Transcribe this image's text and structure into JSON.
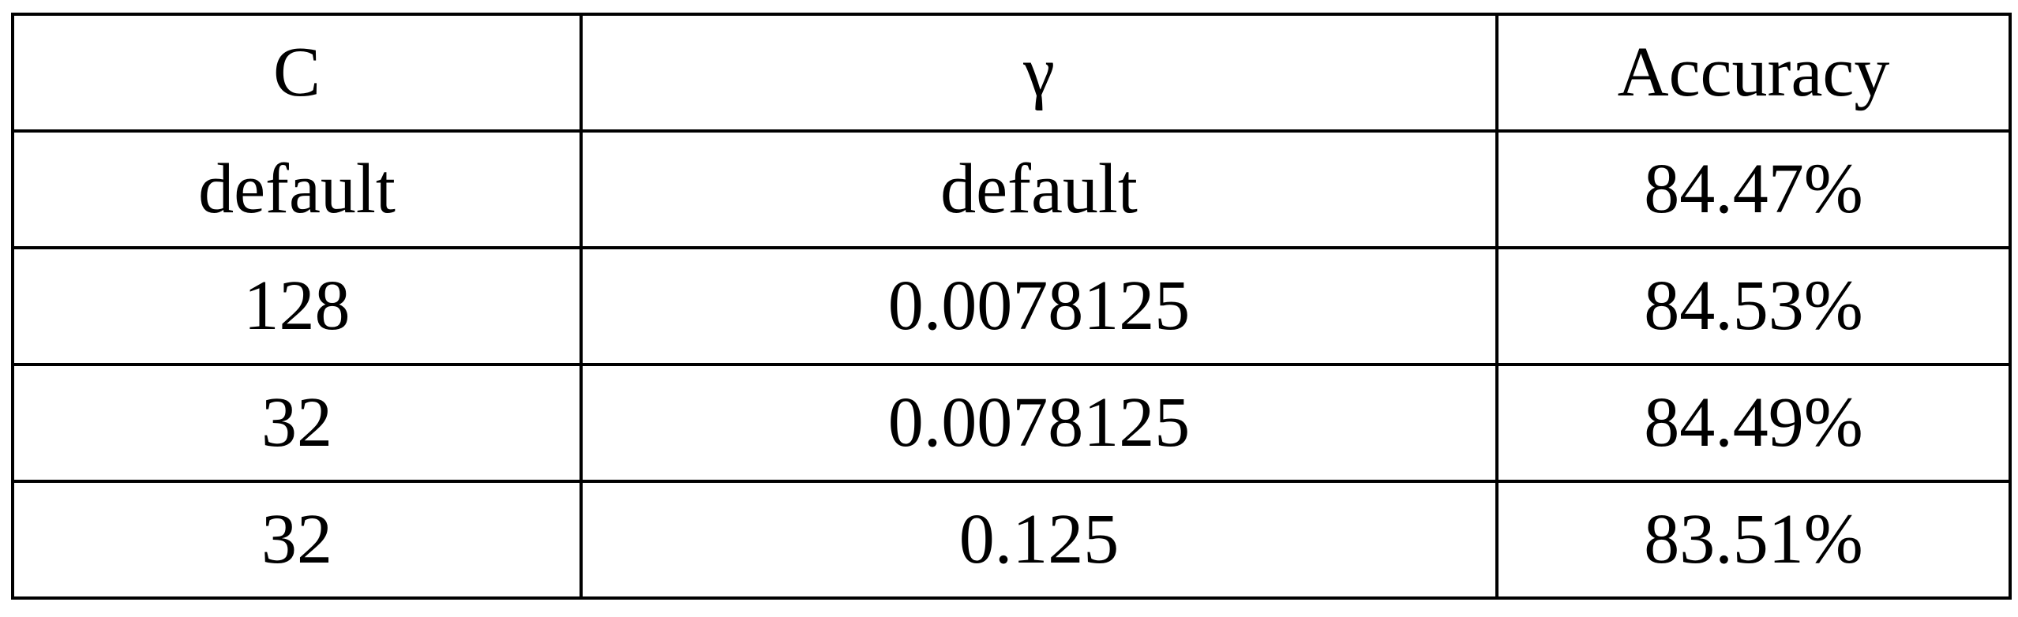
{
  "table": {
    "headers": [
      "C",
      "γ",
      "Accuracy"
    ],
    "rows": [
      [
        "default",
        "default",
        "84.47%"
      ],
      [
        "128",
        "0.0078125",
        "84.53%"
      ],
      [
        "32",
        "0.0078125",
        "84.49%"
      ],
      [
        "32",
        "0.125",
        "83.51%"
      ]
    ]
  }
}
